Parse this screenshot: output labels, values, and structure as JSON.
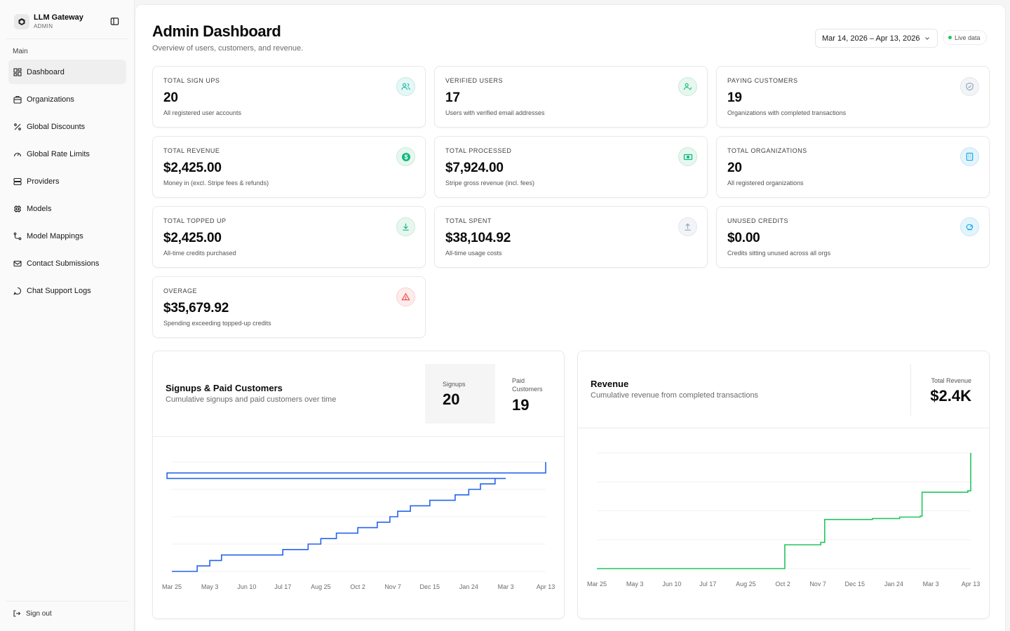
{
  "sidebar": {
    "app_name": "LLM Gateway",
    "role": "ADMIN",
    "section_label": "Main",
    "items": [
      {
        "label": "Dashboard",
        "icon": "dashboard-icon",
        "active": true
      },
      {
        "label": "Organizations",
        "icon": "building-icon"
      },
      {
        "label": "Global Discounts",
        "icon": "percent-icon"
      },
      {
        "label": "Global Rate Limits",
        "icon": "gauge-icon"
      },
      {
        "label": "Providers",
        "icon": "server-icon"
      },
      {
        "label": "Models",
        "icon": "cpu-icon"
      },
      {
        "label": "Model Mappings",
        "icon": "route-icon"
      },
      {
        "label": "Contact Submissions",
        "icon": "mail-icon"
      },
      {
        "label": "Chat Support Logs",
        "icon": "chat-icon"
      }
    ],
    "signout_label": "Sign out"
  },
  "header": {
    "title": "Admin Dashboard",
    "subtitle": "Overview of users, customers, and revenue.",
    "date_range": "Mar 14, 2026 – Apr 13, 2026",
    "live_label": "Live data"
  },
  "cards": [
    {
      "label": "Total Sign Ups",
      "value": "20",
      "desc": "All registered user accounts",
      "icon": "users-icon",
      "color": "#14b8a6"
    },
    {
      "label": "Verified Users",
      "value": "17",
      "desc": "Users with verified email addresses",
      "icon": "user-check-icon",
      "color": "#10b981"
    },
    {
      "label": "Paying Customers",
      "value": "19",
      "desc": "Organizations with completed transactions",
      "icon": "shield-icon",
      "color": "#94a3b8"
    },
    {
      "label": "Total Revenue",
      "value": "$2,425.00",
      "desc": "Money in (excl. Stripe fees & refunds)",
      "icon": "dollar-icon",
      "color": "#10b981"
    },
    {
      "label": "Total Processed",
      "value": "$7,924.00",
      "desc": "Stripe gross revenue (incl. fees)",
      "icon": "banknote-icon",
      "color": "#10b981"
    },
    {
      "label": "Total Organizations",
      "value": "20",
      "desc": "All registered organizations",
      "icon": "building-icon",
      "color": "#0ea5e9"
    },
    {
      "label": "Total Topped Up",
      "value": "$2,425.00",
      "desc": "All-time credits purchased",
      "icon": "download-icon",
      "color": "#10b981"
    },
    {
      "label": "Total Spent",
      "value": "$38,104.92",
      "desc": "All-time usage costs",
      "icon": "upload-icon",
      "color": "#94a3b8"
    },
    {
      "label": "Unused Credits",
      "value": "$0.00",
      "desc": "Credits sitting unused across all orgs",
      "icon": "piggy-bank-icon",
      "color": "#0ea5e9"
    },
    {
      "label": "Overage",
      "value": "$35,679.92",
      "desc": "Spending exceeding topped-up credits",
      "icon": "warning-icon",
      "color": "#ef4444"
    }
  ],
  "signups_chart": {
    "title": "Signups & Paid Customers",
    "subtitle": "Cumulative signups and paid customers over time",
    "signups_label": "Signups",
    "signups_value": "20",
    "paid_label": "Paid Customers",
    "paid_value": "19"
  },
  "revenue_chart": {
    "title": "Revenue",
    "subtitle": "Cumulative revenue from completed transactions",
    "total_label": "Total Revenue",
    "total_value": "$2.4K"
  },
  "chart_data": [
    {
      "type": "line",
      "title": "Signups & Paid Customers",
      "x_ticks": [
        "Mar 25",
        "May 3",
        "Jun 10",
        "Jul 17",
        "Aug 25",
        "Oct 2",
        "Nov 7",
        "Dec 15",
        "Jan 24",
        "Mar 3",
        "Apr 13"
      ],
      "grid": true,
      "series": [
        {
          "color": "#2563eb",
          "x": [
            "Mar 25",
            "Apr 20",
            "May 3",
            "May 15",
            "Jun 10",
            "Jul 6",
            "Jul 17",
            "Jul 30",
            "Aug 12",
            "Aug 25",
            "Sep 10",
            "Oct 2",
            "Oct 22",
            "Nov 4",
            "Nov 12",
            "Nov 25",
            "Dec 15",
            "Jan 10",
            "Jan 24",
            "Feb 5",
            "Feb 20",
            "Mar 3",
            "Mar 20",
            "Apr 13"
          ],
          "y": [
            0,
            1,
            2,
            3,
            3,
            3,
            4,
            4,
            5,
            6,
            7,
            8,
            9,
            10,
            11,
            12,
            13,
            14,
            15,
            16,
            17,
            17,
            18,
            20
          ]
        }
      ]
    },
    {
      "type": "line",
      "title": "Revenue",
      "x_ticks": [
        "Mar 25",
        "May 3",
        "Jun 10",
        "Jul 17",
        "Aug 25",
        "Oct 2",
        "Nov 7",
        "Dec 15",
        "Jan 24",
        "Mar 3",
        "Apr 13"
      ],
      "grid": true,
      "series": [
        {
          "color": "#22c55e",
          "x": [
            "Mar 25",
            "Oct 2",
            "Oct 4",
            "Nov 10",
            "Nov 14",
            "Jan 2",
            "Jan 30",
            "Feb 20",
            "Feb 22",
            "Apr 10",
            "Apr 13"
          ],
          "y": [
            0,
            0,
            500,
            550,
            1030,
            1050,
            1080,
            1100,
            1600,
            1630,
            2425
          ]
        }
      ]
    }
  ]
}
